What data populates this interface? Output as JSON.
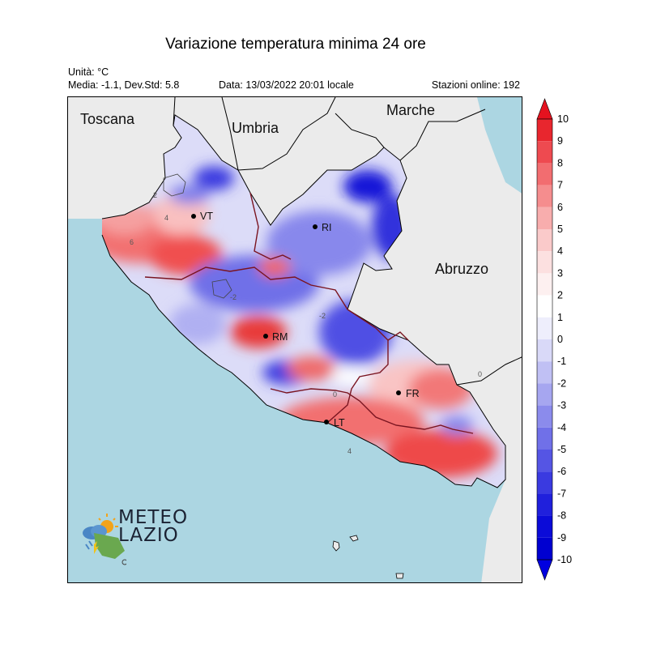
{
  "header": {
    "title": "Variazione temperatura minima 24 ore",
    "unit": "Unità: °C",
    "stats": "Media: -1.1, Dev.Std: 5.8",
    "date": "Data: 13/03/2022 20:01 locale",
    "stations": "Stazioni online: 192"
  },
  "map": {
    "regions": [
      {
        "id": "toscana",
        "label": "Toscana"
      },
      {
        "id": "umbria",
        "label": "Umbria"
      },
      {
        "id": "marche",
        "label": "Marche"
      },
      {
        "id": "abruzzo",
        "label": "Abruzzo"
      }
    ],
    "cities": [
      {
        "id": "vt",
        "label": "VT"
      },
      {
        "id": "ri",
        "label": "RI"
      },
      {
        "id": "rm",
        "label": "RM"
      },
      {
        "id": "fr",
        "label": "FR"
      },
      {
        "id": "lt",
        "label": "LT"
      }
    ],
    "isoline_labels": [
      "2",
      "4",
      "6",
      "-2",
      "0",
      "-2",
      "0",
      "4"
    ],
    "colors": {
      "sea": "#acd6e2",
      "land_outside": "#ebebeb",
      "province_border": "#7a1420",
      "region_border": "#000000"
    }
  },
  "legend": {
    "ticks": [
      10,
      9,
      8,
      7,
      6,
      5,
      4,
      3,
      2,
      1,
      0,
      -1,
      -2,
      -3,
      -4,
      -5,
      -6,
      -7,
      -8,
      -9,
      -10
    ],
    "colors_top_to_bottom": [
      "#e8262e",
      "#ee4a50",
      "#f26d70",
      "#f58d8e",
      "#f8adad",
      "#facaca",
      "#fce0e0",
      "#fdf0f0",
      "#ffffff",
      "#eeeefc",
      "#d9d9f8",
      "#c0c0f4",
      "#a6a6f0",
      "#8b8bec",
      "#7070e8",
      "#5555e4",
      "#3a3ae0",
      "#2020dc",
      "#0b0bd8",
      "#0000d0"
    ]
  },
  "logo": {
    "line1": "METEO",
    "line2": "LAZIO"
  }
}
